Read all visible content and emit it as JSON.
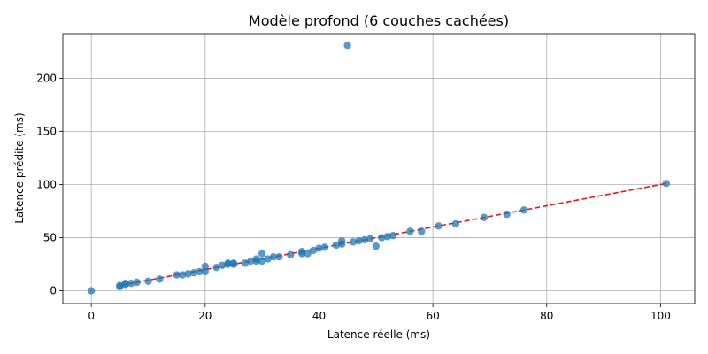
{
  "chart_data": {
    "type": "scatter",
    "title": "Modèle profond (6 couches cachées)",
    "xlabel": "Latence réelle (ms)",
    "ylabel": "Latence prédite (ms)",
    "xlim": [
      -5,
      106
    ],
    "ylim": [
      -12,
      242
    ],
    "xticks": [
      0,
      20,
      40,
      60,
      80,
      100
    ],
    "yticks": [
      0,
      50,
      100,
      150,
      200
    ],
    "grid": true,
    "legend": "none",
    "colors": {
      "points": "#1f77b4",
      "reference_line": "#e8191b"
    },
    "series": [
      {
        "kind": "points",
        "x": [
          0,
          5,
          5,
          6,
          6,
          7,
          8,
          10,
          12,
          15,
          16,
          17,
          18,
          19,
          20,
          20,
          22,
          23,
          24,
          24,
          25,
          25,
          27,
          28,
          29,
          29,
          30,
          30,
          31,
          32,
          33,
          35,
          37,
          37,
          38,
          39,
          40,
          41,
          43,
          44,
          44,
          45,
          46,
          47,
          48,
          49,
          50,
          51,
          52,
          53,
          56,
          58,
          61,
          64,
          69,
          73,
          76,
          101
        ],
        "y": [
          0,
          4,
          5,
          6,
          7,
          7,
          8,
          9,
          11,
          15,
          15,
          16,
          17,
          18,
          18,
          23,
          22,
          24,
          25,
          26,
          25,
          26,
          26,
          28,
          28,
          30,
          28,
          35,
          30,
          32,
          32,
          34,
          35,
          37,
          35,
          38,
          40,
          41,
          43,
          44,
          47,
          231,
          46,
          47,
          48,
          49,
          42,
          50,
          51,
          52,
          56,
          56,
          61,
          63,
          69,
          72,
          76,
          101
        ]
      },
      {
        "kind": "reference-line",
        "style": "dashed",
        "x": [
          5,
          101
        ],
        "y": [
          5,
          101
        ]
      }
    ]
  }
}
